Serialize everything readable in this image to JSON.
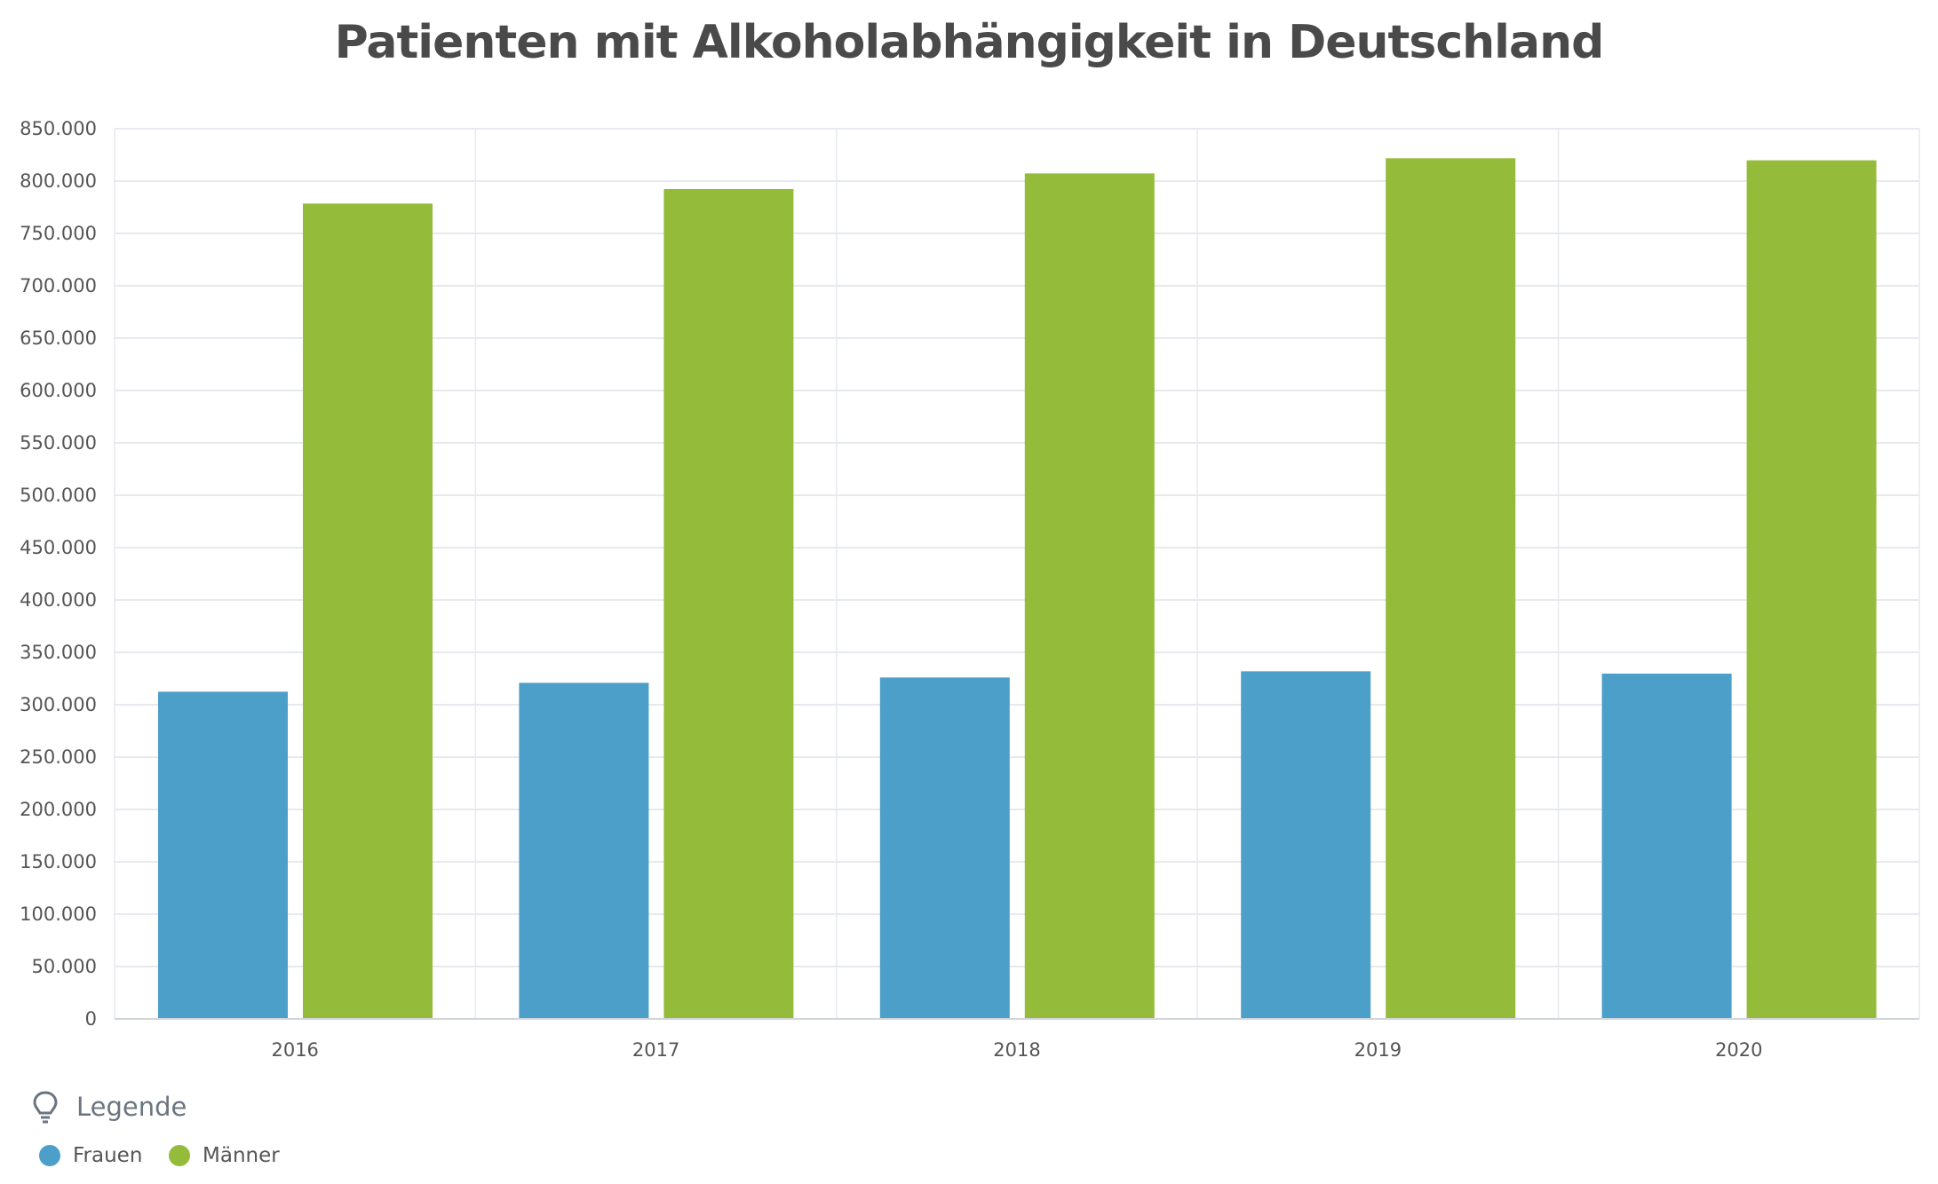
{
  "chart_data": {
    "type": "bar",
    "title": "Patienten mit Alkoholabhängigkeit in Deutschland",
    "categories": [
      "2016",
      "2017",
      "2018",
      "2019",
      "2020"
    ],
    "series": [
      {
        "name": "Frauen",
        "color": "#4b9fc8",
        "values": [
          312400,
          320900,
          326000,
          331900,
          329700
        ]
      },
      {
        "name": "Männer",
        "color": "#94bb39",
        "values": [
          778500,
          792400,
          807300,
          821800,
          819800
        ]
      }
    ],
    "ylim": [
      0,
      850000
    ],
    "yticks": [
      0,
      50000,
      100000,
      150000,
      200000,
      250000,
      300000,
      350000,
      400000,
      450000,
      500000,
      550000,
      600000,
      650000,
      700000,
      750000,
      800000,
      850000
    ],
    "ytick_labels": [
      "0",
      "50.000",
      "100.000",
      "150.000",
      "200.000",
      "250.000",
      "300.000",
      "350.000",
      "400.000",
      "450.000",
      "500.000",
      "550.000",
      "600.000",
      "650.000",
      "700.000",
      "750.000",
      "800.000",
      "850.000"
    ],
    "xlabel": "",
    "ylabel": "",
    "grid": true,
    "legend_placement": "bottom-left"
  },
  "legend": {
    "title": "Legende",
    "icon": "lightbulb-icon",
    "items": [
      "Frauen",
      "Männer"
    ]
  }
}
